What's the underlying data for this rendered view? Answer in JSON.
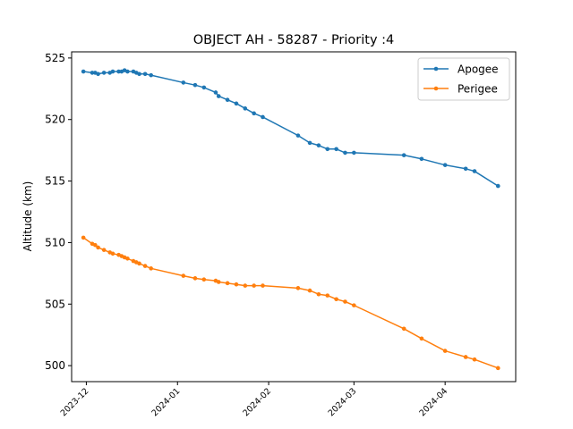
{
  "chart_data": {
    "type": "line",
    "title": "OBJECT AH - 58287 - Priority :4",
    "xlabel": "",
    "ylabel": "Altitude (km)",
    "x_type": "date",
    "xlim": [
      "2023-11-26",
      "2024-04-25"
    ],
    "ylim": [
      498.7,
      525.5
    ],
    "x_ticks": [
      "2023-12",
      "2024-01",
      "2024-02",
      "2024-03",
      "2024-04"
    ],
    "x_tick_values": [
      "2023-12-01",
      "2024-01-01",
      "2024-02-01",
      "2024-03-01",
      "2024-04-01"
    ],
    "y_ticks": [
      500,
      505,
      510,
      515,
      520,
      525
    ],
    "grid": false,
    "legend_position": "top-right",
    "series": [
      {
        "name": "Apogee",
        "color": "#1f77b4",
        "points": [
          [
            "2023-11-30",
            523.9
          ],
          [
            "2023-12-03",
            523.8
          ],
          [
            "2023-12-04",
            523.8
          ],
          [
            "2023-12-05",
            523.7
          ],
          [
            "2023-12-07",
            523.8
          ],
          [
            "2023-12-09",
            523.8
          ],
          [
            "2023-12-10",
            523.9
          ],
          [
            "2023-12-12",
            523.9
          ],
          [
            "2023-12-13",
            523.9
          ],
          [
            "2023-12-14",
            524.0
          ],
          [
            "2023-12-15",
            523.9
          ],
          [
            "2023-12-17",
            523.9
          ],
          [
            "2023-12-18",
            523.8
          ],
          [
            "2023-12-19",
            523.7
          ],
          [
            "2023-12-21",
            523.7
          ],
          [
            "2023-12-23",
            523.6
          ],
          [
            "2024-01-03",
            523.0
          ],
          [
            "2024-01-07",
            522.8
          ],
          [
            "2024-01-10",
            522.6
          ],
          [
            "2024-01-14",
            522.2
          ],
          [
            "2024-01-15",
            521.9
          ],
          [
            "2024-01-18",
            521.6
          ],
          [
            "2024-01-21",
            521.3
          ],
          [
            "2024-01-24",
            520.9
          ],
          [
            "2024-01-27",
            520.5
          ],
          [
            "2024-01-30",
            520.2
          ],
          [
            "2024-02-11",
            518.7
          ],
          [
            "2024-02-15",
            518.1
          ],
          [
            "2024-02-18",
            517.9
          ],
          [
            "2024-02-21",
            517.6
          ],
          [
            "2024-02-24",
            517.6
          ],
          [
            "2024-02-27",
            517.3
          ],
          [
            "2024-03-01",
            517.3
          ],
          [
            "2024-03-18",
            517.1
          ],
          [
            "2024-03-24",
            516.8
          ],
          [
            "2024-04-01",
            516.3
          ],
          [
            "2024-04-08",
            516.0
          ],
          [
            "2024-04-11",
            515.8
          ],
          [
            "2024-04-19",
            514.6
          ]
        ]
      },
      {
        "name": "Perigee",
        "color": "#ff7f0e",
        "points": [
          [
            "2023-11-30",
            510.4
          ],
          [
            "2023-12-03",
            509.9
          ],
          [
            "2023-12-04",
            509.8
          ],
          [
            "2023-12-05",
            509.6
          ],
          [
            "2023-12-07",
            509.4
          ],
          [
            "2023-12-09",
            509.2
          ],
          [
            "2023-12-10",
            509.1
          ],
          [
            "2023-12-12",
            509.0
          ],
          [
            "2023-12-13",
            508.9
          ],
          [
            "2023-12-14",
            508.8
          ],
          [
            "2023-12-15",
            508.7
          ],
          [
            "2023-12-17",
            508.5
          ],
          [
            "2023-12-18",
            508.4
          ],
          [
            "2023-12-19",
            508.3
          ],
          [
            "2023-12-21",
            508.1
          ],
          [
            "2023-12-23",
            507.9
          ],
          [
            "2024-01-03",
            507.3
          ],
          [
            "2024-01-07",
            507.1
          ],
          [
            "2024-01-10",
            507.0
          ],
          [
            "2024-01-14",
            506.9
          ],
          [
            "2024-01-15",
            506.8
          ],
          [
            "2024-01-18",
            506.7
          ],
          [
            "2024-01-21",
            506.6
          ],
          [
            "2024-01-24",
            506.5
          ],
          [
            "2024-01-27",
            506.5
          ],
          [
            "2024-01-30",
            506.5
          ],
          [
            "2024-02-11",
            506.3
          ],
          [
            "2024-02-15",
            506.1
          ],
          [
            "2024-02-18",
            505.8
          ],
          [
            "2024-02-21",
            505.7
          ],
          [
            "2024-02-24",
            505.4
          ],
          [
            "2024-02-27",
            505.2
          ],
          [
            "2024-03-01",
            504.9
          ],
          [
            "2024-03-18",
            503.0
          ],
          [
            "2024-03-24",
            502.2
          ],
          [
            "2024-04-01",
            501.2
          ],
          [
            "2024-04-08",
            500.7
          ],
          [
            "2024-04-11",
            500.5
          ],
          [
            "2024-04-19",
            499.8
          ]
        ]
      }
    ]
  }
}
